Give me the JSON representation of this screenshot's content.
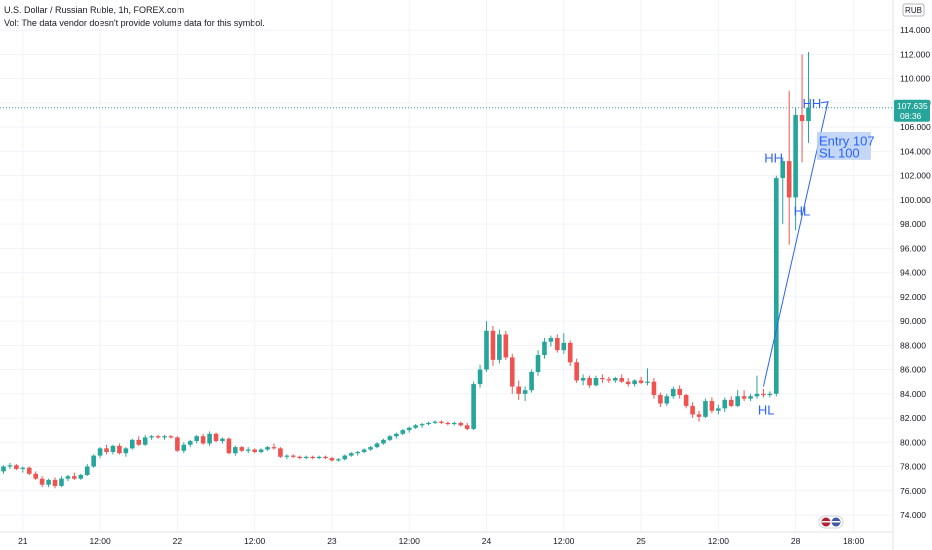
{
  "header": {
    "title": "U.S. Dollar / Russian Ruble, 1h, FOREX.com",
    "volume_note": "Vol: The data vendor doesn't provide volume data for this symbol."
  },
  "currency_badge": "RUB",
  "price_label": {
    "price": "107.635",
    "countdown": "08:36"
  },
  "colors": {
    "up": "#26a69a",
    "down": "#ef5350",
    "annotation": "#2962ff",
    "grid": "#f0f3fa",
    "last_price_line": "#26a69a"
  },
  "annotations": {
    "hh_top": "HH",
    "hh_mid": "HH",
    "hl_mid": "HL",
    "hl_low": "HL",
    "entry_line1": "Entry 107",
    "entry_line2": "SL 100"
  },
  "chart_data": {
    "type": "candlestick",
    "ylim": [
      73,
      116
    ],
    "y_ticks": [
      74,
      76,
      78,
      80,
      82,
      84,
      86,
      88,
      90,
      92,
      94,
      96,
      98,
      100,
      102,
      104,
      106,
      108,
      110,
      112,
      114
    ],
    "y_tick_labels": [
      "74.000",
      "76.000",
      "78.000",
      "80.000",
      "82.000",
      "84.000",
      "86.000",
      "88.000",
      "90.000",
      "92.000",
      "94.000",
      "96.000",
      "98.000",
      "100.000",
      "102.000",
      "104.000",
      "106.000",
      "108.000",
      "110.000",
      "112.000",
      "114.000"
    ],
    "x_ticks": [
      {
        "label": "21",
        "bar": 3
      },
      {
        "label": "12:00",
        "bar": 15
      },
      {
        "label": "22",
        "bar": 27
      },
      {
        "label": "12:00",
        "bar": 39
      },
      {
        "label": "23",
        "bar": 51
      },
      {
        "label": "12:00",
        "bar": 63
      },
      {
        "label": "24",
        "bar": 75
      },
      {
        "label": "12:00",
        "bar": 87
      },
      {
        "label": "25",
        "bar": 99
      },
      {
        "label": "12:00",
        "bar": 111
      },
      {
        "label": "28",
        "bar": 123
      },
      {
        "label": "18:00",
        "bar": 132
      }
    ],
    "candles": [
      [
        77.6,
        78.1,
        77.4,
        78.0
      ],
      [
        78.0,
        78.3,
        77.8,
        78.1
      ],
      [
        78.1,
        78.2,
        77.7,
        77.8
      ],
      [
        77.8,
        78.0,
        77.5,
        77.9
      ],
      [
        77.9,
        78.0,
        77.3,
        77.4
      ],
      [
        77.4,
        77.6,
        76.9,
        77.0
      ],
      [
        77.0,
        77.2,
        76.3,
        76.5
      ],
      [
        76.5,
        77.0,
        76.3,
        76.9
      ],
      [
        76.9,
        77.1,
        76.2,
        76.4
      ],
      [
        76.4,
        77.2,
        76.3,
        77.0
      ],
      [
        77.0,
        77.3,
        76.8,
        77.2
      ],
      [
        77.2,
        77.5,
        76.9,
        77.0
      ],
      [
        77.0,
        77.4,
        76.9,
        77.3
      ],
      [
        77.3,
        78.2,
        77.2,
        78.0
      ],
      [
        78.0,
        79.0,
        77.9,
        78.9
      ],
      [
        78.9,
        79.6,
        78.7,
        79.5
      ],
      [
        79.5,
        79.8,
        79.0,
        79.2
      ],
      [
        79.2,
        79.8,
        79.0,
        79.7
      ],
      [
        79.7,
        79.9,
        79.0,
        79.1
      ],
      [
        79.1,
        79.6,
        78.8,
        79.5
      ],
      [
        79.5,
        80.3,
        79.4,
        80.2
      ],
      [
        80.2,
        80.5,
        79.7,
        79.8
      ],
      [
        79.8,
        80.6,
        79.7,
        80.4
      ],
      [
        80.4,
        80.6,
        80.2,
        80.5
      ],
      [
        80.5,
        80.6,
        80.3,
        80.4
      ],
      [
        80.4,
        80.6,
        80.2,
        80.5
      ],
      [
        80.5,
        80.6,
        80.3,
        80.4
      ],
      [
        80.4,
        80.5,
        79.2,
        79.3
      ],
      [
        79.3,
        80.0,
        79.1,
        79.8
      ],
      [
        79.8,
        80.2,
        79.6,
        80.1
      ],
      [
        80.1,
        80.6,
        79.9,
        80.5
      ],
      [
        80.5,
        80.7,
        79.8,
        79.9
      ],
      [
        79.9,
        80.9,
        79.7,
        80.7
      ],
      [
        80.7,
        80.8,
        80.0,
        80.1
      ],
      [
        80.1,
        80.4,
        79.9,
        80.3
      ],
      [
        80.3,
        80.4,
        79.0,
        79.1
      ],
      [
        79.1,
        79.7,
        78.9,
        79.6
      ],
      [
        79.6,
        79.7,
        79.2,
        79.3
      ],
      [
        79.3,
        79.6,
        79.1,
        79.4
      ],
      [
        79.4,
        79.5,
        79.1,
        79.2
      ],
      [
        79.2,
        79.5,
        79.1,
        79.4
      ],
      [
        79.4,
        79.7,
        79.3,
        79.6
      ],
      [
        79.6,
        79.9,
        79.4,
        79.5
      ],
      [
        79.5,
        79.6,
        78.7,
        78.8
      ],
      [
        78.8,
        79.0,
        78.6,
        78.9
      ],
      [
        78.9,
        79.0,
        78.7,
        78.8
      ],
      [
        78.8,
        78.9,
        78.6,
        78.7
      ],
      [
        78.7,
        78.9,
        78.6,
        78.8
      ],
      [
        78.8,
        78.9,
        78.6,
        78.7
      ],
      [
        78.7,
        78.9,
        78.6,
        78.8
      ],
      [
        78.8,
        78.9,
        78.6,
        78.7
      ],
      [
        78.7,
        78.8,
        78.4,
        78.5
      ],
      [
        78.5,
        78.7,
        78.4,
        78.6
      ],
      [
        78.6,
        79.0,
        78.5,
        78.9
      ],
      [
        78.9,
        79.2,
        78.8,
        79.1
      ],
      [
        79.1,
        79.3,
        78.9,
        79.2
      ],
      [
        79.2,
        79.5,
        79.1,
        79.4
      ],
      [
        79.4,
        79.7,
        79.3,
        79.6
      ],
      [
        79.6,
        80.0,
        79.5,
        79.9
      ],
      [
        79.9,
        80.3,
        79.8,
        80.2
      ],
      [
        80.2,
        80.6,
        80.1,
        80.5
      ],
      [
        80.5,
        80.8,
        80.3,
        80.7
      ],
      [
        80.7,
        81.1,
        80.6,
        81.0
      ],
      [
        81.0,
        81.3,
        80.8,
        81.2
      ],
      [
        81.2,
        81.5,
        81.1,
        81.4
      ],
      [
        81.4,
        81.6,
        81.2,
        81.5
      ],
      [
        81.5,
        81.7,
        81.4,
        81.6
      ],
      [
        81.6,
        81.8,
        81.5,
        81.7
      ],
      [
        81.7,
        81.8,
        81.5,
        81.6
      ],
      [
        81.6,
        81.7,
        81.4,
        81.5
      ],
      [
        81.5,
        81.7,
        81.4,
        81.6
      ],
      [
        81.6,
        81.7,
        81.3,
        81.4
      ],
      [
        81.4,
        81.6,
        81.0,
        81.1
      ],
      [
        81.1,
        85.0,
        81.0,
        84.8
      ],
      [
        84.8,
        86.4,
        84.5,
        86.0
      ],
      [
        86.0,
        90.0,
        85.8,
        89.2
      ],
      [
        89.2,
        89.6,
        86.3,
        86.8
      ],
      [
        86.8,
        89.3,
        86.5,
        88.9
      ],
      [
        88.9,
        89.2,
        86.8,
        87.0
      ],
      [
        87.0,
        87.3,
        84.0,
        84.6
      ],
      [
        84.6,
        85.1,
        83.5,
        84.0
      ],
      [
        84.0,
        84.6,
        83.4,
        84.3
      ],
      [
        84.3,
        86.0,
        84.1,
        85.8
      ],
      [
        85.8,
        87.6,
        85.5,
        87.2
      ],
      [
        87.2,
        88.6,
        86.9,
        88.3
      ],
      [
        88.3,
        88.8,
        87.9,
        88.6
      ],
      [
        88.6,
        88.9,
        87.4,
        87.6
      ],
      [
        87.6,
        89.0,
        87.3,
        88.2
      ],
      [
        88.2,
        88.4,
        86.3,
        86.6
      ],
      [
        86.6,
        86.9,
        84.9,
        85.1
      ],
      [
        85.1,
        85.6,
        84.7,
        85.3
      ],
      [
        85.3,
        85.5,
        84.5,
        84.7
      ],
      [
        84.7,
        85.5,
        84.6,
        85.3
      ],
      [
        85.3,
        85.6,
        84.9,
        85.2
      ],
      [
        85.2,
        85.4,
        84.9,
        85.1
      ],
      [
        85.1,
        85.4,
        84.9,
        85.3
      ],
      [
        85.3,
        85.6,
        84.9,
        85.0
      ],
      [
        85.0,
        85.3,
        84.6,
        84.8
      ],
      [
        84.8,
        85.2,
        84.6,
        85.1
      ],
      [
        85.1,
        85.4,
        84.8,
        84.9
      ],
      [
        84.9,
        86.1,
        84.7,
        85.0
      ],
      [
        85.0,
        85.3,
        83.6,
        83.9
      ],
      [
        83.9,
        84.1,
        82.9,
        83.2
      ],
      [
        83.2,
        84.0,
        83.0,
        83.8
      ],
      [
        83.8,
        84.6,
        83.6,
        84.4
      ],
      [
        84.4,
        84.7,
        83.6,
        83.9
      ],
      [
        83.9,
        84.0,
        82.8,
        83.0
      ],
      [
        83.0,
        83.3,
        82.0,
        82.3
      ],
      [
        82.3,
        82.6,
        81.7,
        82.1
      ],
      [
        82.1,
        83.6,
        82.0,
        83.4
      ],
      [
        83.4,
        83.7,
        82.4,
        82.6
      ],
      [
        82.6,
        83.1,
        82.3,
        82.8
      ],
      [
        82.8,
        83.7,
        82.5,
        83.5
      ],
      [
        83.5,
        83.8,
        82.9,
        83.0
      ],
      [
        83.0,
        84.3,
        82.9,
        83.8
      ],
      [
        83.8,
        84.3,
        83.4,
        83.6
      ],
      [
        83.6,
        84.0,
        83.4,
        83.8
      ],
      [
        83.8,
        85.5,
        83.6,
        84.0
      ],
      [
        84.0,
        84.4,
        83.7,
        83.9
      ],
      [
        83.9,
        84.2,
        83.7,
        84.0
      ],
      [
        84.0,
        102.0,
        83.8,
        101.8
      ],
      [
        101.8,
        103.5,
        98.0,
        103.2
      ],
      [
        103.2,
        109.0,
        96.3,
        100.2
      ],
      [
        100.2,
        107.6,
        97.5,
        107.0
      ],
      [
        107.0,
        112.0,
        103.1,
        106.5
      ],
      [
        106.5,
        112.2,
        104.7,
        107.6
      ]
    ]
  }
}
